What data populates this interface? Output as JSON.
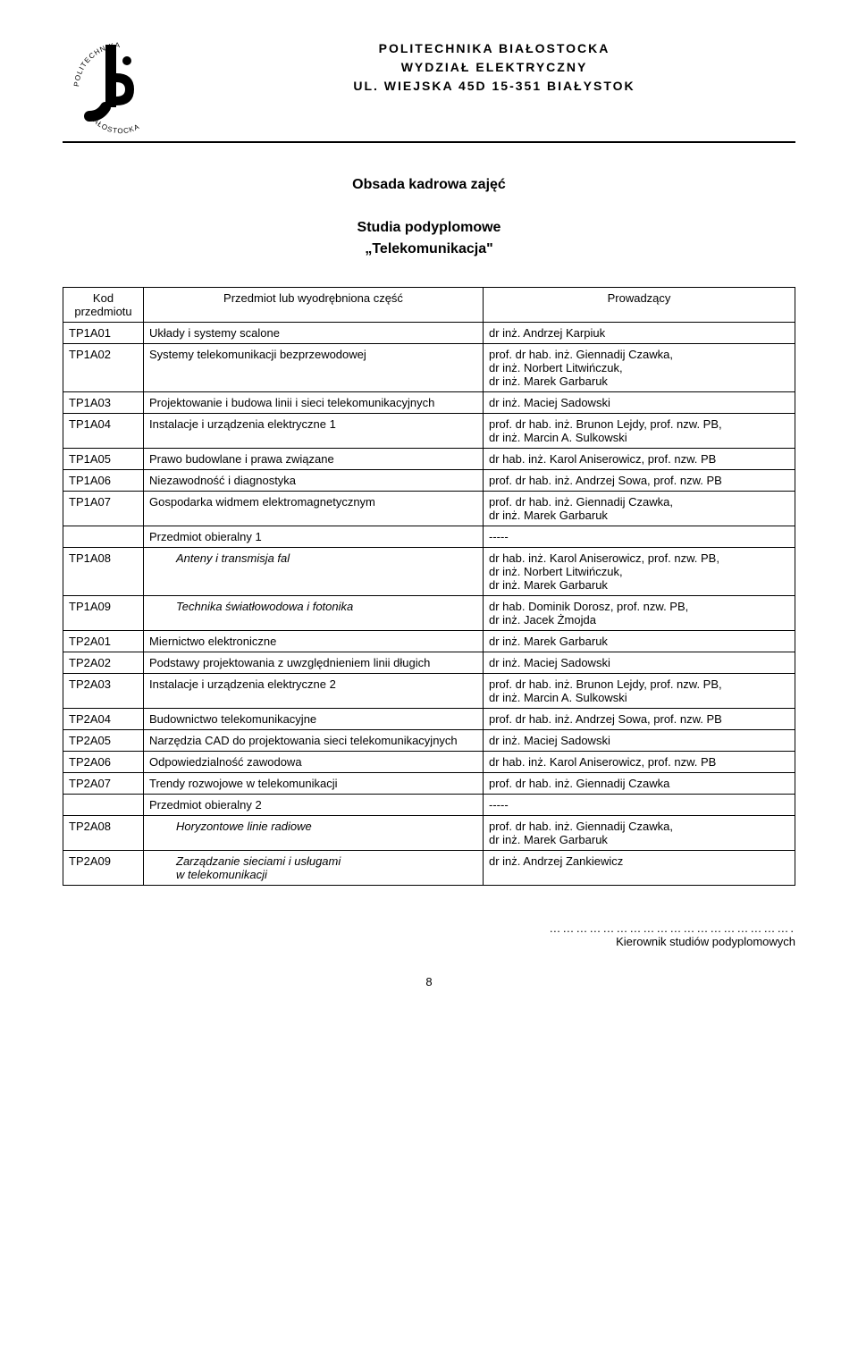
{
  "header": {
    "line1": "POLITECHNIKA BIAŁOSTOCKA",
    "line2": "WYDZIAŁ ELEKTRYCZNY",
    "line3": "UL. WIEJSKA 45D      15-351 BIAŁYSTOK",
    "logo_text_top": "POLITECHNIKA",
    "logo_text_bottom": "BIAŁOSTOCKA"
  },
  "title": {
    "line1": "Obsada kadrowa zajęć",
    "line2": "Studia podyplomowe",
    "line3": "„Telekomunikacja\""
  },
  "table": {
    "head": {
      "code": "Kod przedmiotu",
      "subject": "Przedmiot lub wyodrębniona część",
      "lecturer": "Prowadzący"
    },
    "rows": [
      {
        "code": "TP1A01",
        "subject": "Układy i systemy scalone",
        "lecturer": "dr inż. Andrzej Karpiuk",
        "indent": false
      },
      {
        "code": "TP1A02",
        "subject": "Systemy telekomunikacji bezprzewodowej",
        "lecturer": "prof. dr hab. inż. Giennadij Czawka,\ndr inż. Norbert Litwińczuk,\ndr inż. Marek Garbaruk",
        "indent": false
      },
      {
        "code": "TP1A03",
        "subject": "Projektowanie i budowa linii i sieci telekomunikacyjnych",
        "lecturer": "dr inż. Maciej Sadowski",
        "indent": false
      },
      {
        "code": "TP1A04",
        "subject": "Instalacje i urządzenia elektryczne 1",
        "lecturer": "prof. dr hab. inż. Brunon Lejdy, prof. nzw. PB,\ndr inż. Marcin A. Sulkowski",
        "indent": false
      },
      {
        "code": "TP1A05",
        "subject": "Prawo budowlane i prawa związane",
        "lecturer": "dr hab. inż. Karol Aniserowicz, prof. nzw. PB",
        "indent": false
      },
      {
        "code": "TP1A06",
        "subject": "Niezawodność i diagnostyka",
        "lecturer": "prof. dr hab. inż. Andrzej Sowa, prof. nzw. PB",
        "indent": false
      },
      {
        "code": "TP1A07",
        "subject": "Gospodarka widmem elektromagnetycznym",
        "lecturer": "prof. dr hab. inż. Giennadij Czawka,\ndr inż. Marek Garbaruk",
        "indent": false
      },
      {
        "code": "",
        "subject": "Przedmiot obieralny 1",
        "lecturer": "-----",
        "indent": false
      },
      {
        "code": "TP1A08",
        "subject": "Anteny i transmisja fal",
        "lecturer": "dr hab. inż. Karol Aniserowicz, prof. nzw. PB,\ndr inż. Norbert Litwińczuk,\ndr inż. Marek Garbaruk",
        "indent": true
      },
      {
        "code": "TP1A09",
        "subject": "Technika światłowodowa i fotonika",
        "lecturer": "dr hab. Dominik Dorosz, prof. nzw. PB,\ndr inż. Jacek Żmojda",
        "indent": true
      },
      {
        "code": "TP2A01",
        "subject": "Miernictwo elektroniczne",
        "lecturer": "dr inż. Marek Garbaruk",
        "indent": false
      },
      {
        "code": "TP2A02",
        "subject": "Podstawy projektowania z uwzględnieniem linii długich",
        "lecturer": "dr inż. Maciej Sadowski",
        "indent": false
      },
      {
        "code": "TP2A03",
        "subject": "Instalacje i urządzenia elektryczne 2",
        "lecturer": "prof. dr hab. inż. Brunon Lejdy, prof. nzw. PB,\ndr inż. Marcin A. Sulkowski",
        "indent": false
      },
      {
        "code": "TP2A04",
        "subject": "Budownictwo telekomunikacyjne",
        "lecturer": "prof. dr hab. inż. Andrzej Sowa, prof. nzw. PB",
        "indent": false
      },
      {
        "code": "TP2A05",
        "subject": "Narzędzia CAD do projektowania sieci telekomunikacyjnych",
        "lecturer": "dr inż. Maciej Sadowski",
        "indent": false
      },
      {
        "code": "TP2A06",
        "subject": "Odpowiedzialność zawodowa",
        "lecturer": "dr hab. inż. Karol Aniserowicz, prof. nzw. PB",
        "indent": false
      },
      {
        "code": "TP2A07",
        "subject": "Trendy rozwojowe w telekomunikacji",
        "lecturer": "prof. dr hab. inż. Giennadij Czawka",
        "indent": false
      },
      {
        "code": "",
        "subject": "Przedmiot obieralny 2",
        "lecturer": "-----",
        "indent": false
      },
      {
        "code": "TP2A08",
        "subject": "Horyzontowe linie radiowe",
        "lecturer": "prof. dr hab. inż. Giennadij Czawka,\ndr inż. Marek Garbaruk",
        "indent": true
      },
      {
        "code": "TP2A09",
        "subject": "Zarządzanie sieciami i usługami\nw telekomunikacji",
        "lecturer": "dr inż. Andrzej Zankiewicz",
        "indent": true
      }
    ]
  },
  "footer": {
    "dots": "……………………………………………….",
    "caption": "Kierownik studiów podyplomowych"
  },
  "page_number": "8",
  "colors": {
    "text": "#000000",
    "bg": "#ffffff",
    "border": "#000000"
  },
  "fonts": {
    "body_pt": 13,
    "header_pt": 14,
    "title_pt": 16
  }
}
